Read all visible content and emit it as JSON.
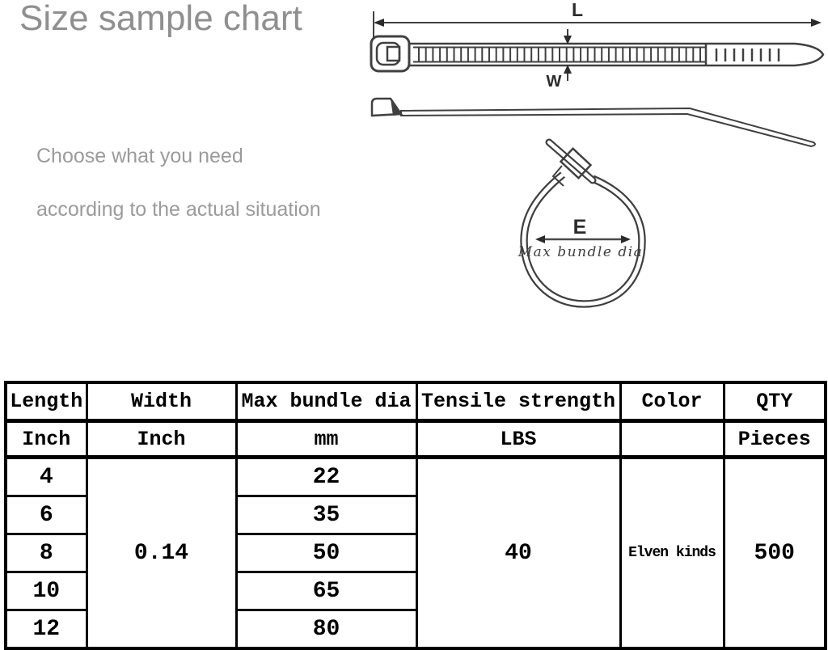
{
  "header": {
    "title": "Size sample chart"
  },
  "intro": {
    "line1": "Choose what you need",
    "line2": "according to the actual situation"
  },
  "diagram": {
    "length_label": "L",
    "width_label": "W",
    "bundle_dia_label": "E",
    "bundle_dia_caption": "Max bundle dia"
  },
  "table": {
    "headers": [
      "Length",
      "Width",
      "Max bundle dia",
      "Tensile strength",
      "Color",
      "QTY"
    ],
    "units": [
      "Inch",
      "Inch",
      "mm",
      "LBS",
      "",
      "Pieces"
    ],
    "length_values": [
      "4",
      "6",
      "8",
      "10",
      "12"
    ],
    "max_bundle_dia_values": [
      "22",
      "35",
      "50",
      "65",
      "80"
    ],
    "width_value": "0.14",
    "tensile_strength_value": "40",
    "color_value": "Elven kinds",
    "qty_value": "500"
  },
  "colors": {
    "title_text": "#8f8f8f",
    "body_text": "#9b9b9b",
    "line_art": "#404040",
    "table_border": "#000000"
  }
}
